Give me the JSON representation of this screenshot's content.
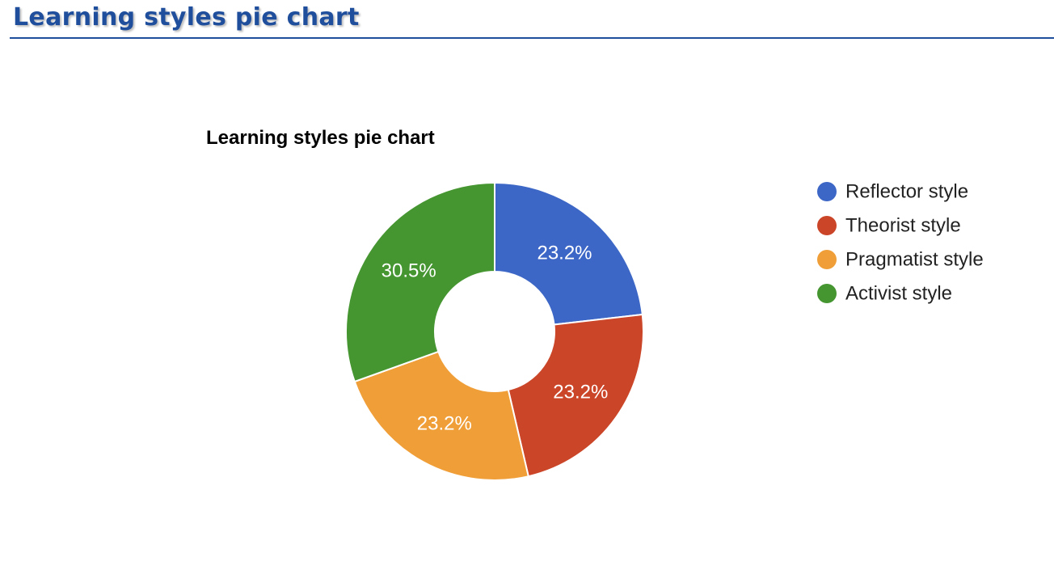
{
  "page": {
    "heading": "Learning styles pie chart"
  },
  "colors": {
    "heading": "#1f4e9c",
    "reflector": "#3d67c6",
    "theorist": "#cb4528",
    "pragmatist": "#f09e37",
    "activist": "#459531"
  },
  "chart_data": {
    "type": "pie",
    "donut": true,
    "title": "Learning styles pie chart",
    "legend_position": "right",
    "slices": [
      {
        "label": "Reflector style",
        "value": 23.2,
        "display": "23.2%",
        "color": "#3d67c6"
      },
      {
        "label": "Theorist style",
        "value": 23.2,
        "display": "23.2%",
        "color": "#cb4528"
      },
      {
        "label": "Pragmatist style",
        "value": 23.2,
        "display": "23.2%",
        "color": "#f09e37"
      },
      {
        "label": "Activist style",
        "value": 30.5,
        "display": "30.5%",
        "color": "#459531"
      }
    ]
  }
}
